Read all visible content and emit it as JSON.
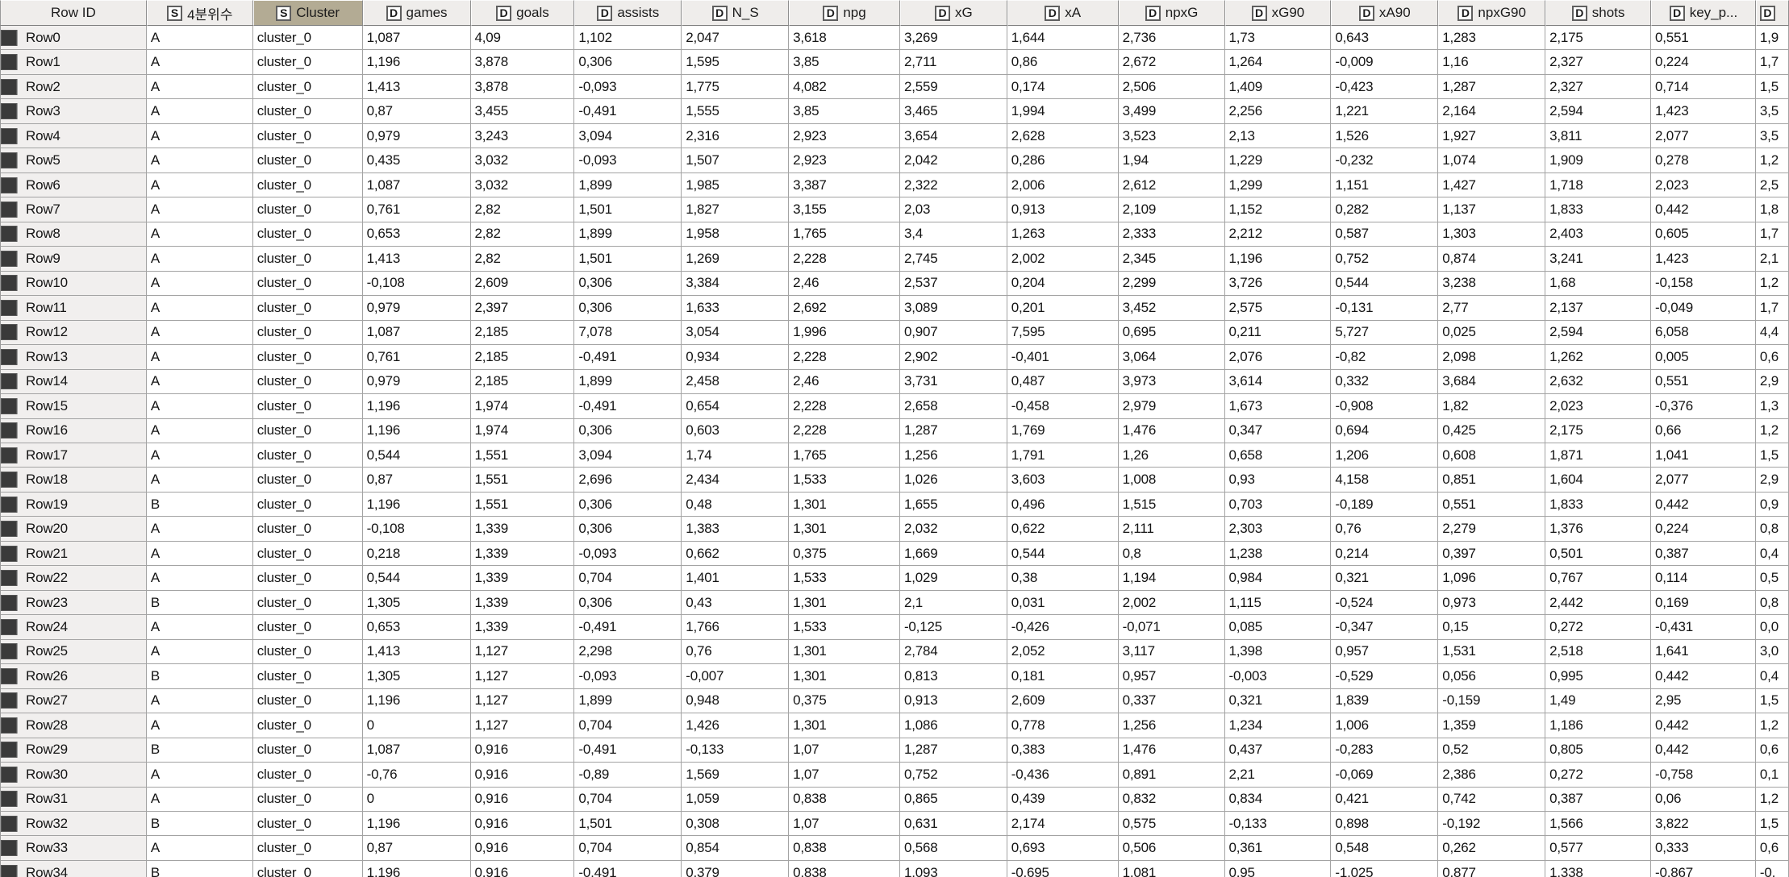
{
  "colors": {
    "highlighted_header_background": "#b3ab94",
    "row_color_chip": "#3a3a3a",
    "header_background": "#efedeb",
    "grid_line": "#a3a3a3"
  },
  "table": {
    "row_id_header": "Row ID",
    "columns": [
      {
        "type": "S",
        "label": "4분위수",
        "highlighted": false
      },
      {
        "type": "S",
        "label": "Cluster",
        "highlighted": true
      },
      {
        "type": "D",
        "label": "games",
        "highlighted": false
      },
      {
        "type": "D",
        "label": "goals",
        "highlighted": false
      },
      {
        "type": "D",
        "label": "assists",
        "highlighted": false
      },
      {
        "type": "D",
        "label": "N_S",
        "highlighted": false
      },
      {
        "type": "D",
        "label": "npg",
        "highlighted": false
      },
      {
        "type": "D",
        "label": "xG",
        "highlighted": false
      },
      {
        "type": "D",
        "label": "xA",
        "highlighted": false
      },
      {
        "type": "D",
        "label": "npxG",
        "highlighted": false
      },
      {
        "type": "D",
        "label": "xG90",
        "highlighted": false
      },
      {
        "type": "D",
        "label": "xA90",
        "highlighted": false
      },
      {
        "type": "D",
        "label": "npxG90",
        "highlighted": false
      },
      {
        "type": "D",
        "label": "shots",
        "highlighted": false
      },
      {
        "type": "D",
        "label": "key_p...",
        "highlighted": false
      },
      {
        "type": "D",
        "label": "",
        "highlighted": false
      }
    ],
    "rows": [
      {
        "id": "Row0",
        "cells": [
          "A",
          "cluster_0",
          "1,087",
          "4,09",
          "1,102",
          "2,047",
          "3,618",
          "3,269",
          "1,644",
          "2,736",
          "1,73",
          "0,643",
          "1,283",
          "2,175",
          "0,551",
          "1,9"
        ]
      },
      {
        "id": "Row1",
        "cells": [
          "A",
          "cluster_0",
          "1,196",
          "3,878",
          "0,306",
          "1,595",
          "3,85",
          "2,711",
          "0,86",
          "2,672",
          "1,264",
          "-0,009",
          "1,16",
          "2,327",
          "0,224",
          "1,7"
        ]
      },
      {
        "id": "Row2",
        "cells": [
          "A",
          "cluster_0",
          "1,413",
          "3,878",
          "-0,093",
          "1,775",
          "4,082",
          "2,559",
          "0,174",
          "2,506",
          "1,409",
          "-0,423",
          "1,287",
          "2,327",
          "0,714",
          "1,5"
        ]
      },
      {
        "id": "Row3",
        "cells": [
          "A",
          "cluster_0",
          "0,87",
          "3,455",
          "-0,491",
          "1,555",
          "3,85",
          "3,465",
          "1,994",
          "3,499",
          "2,256",
          "1,221",
          "2,164",
          "2,594",
          "1,423",
          "3,5"
        ]
      },
      {
        "id": "Row4",
        "cells": [
          "A",
          "cluster_0",
          "0,979",
          "3,243",
          "3,094",
          "2,316",
          "2,923",
          "3,654",
          "2,628",
          "3,523",
          "2,13",
          "1,526",
          "1,927",
          "3,811",
          "2,077",
          "3,5"
        ]
      },
      {
        "id": "Row5",
        "cells": [
          "A",
          "cluster_0",
          "0,435",
          "3,032",
          "-0,093",
          "1,507",
          "2,923",
          "2,042",
          "0,286",
          "1,94",
          "1,229",
          "-0,232",
          "1,074",
          "1,909",
          "0,278",
          "1,2"
        ]
      },
      {
        "id": "Row6",
        "cells": [
          "A",
          "cluster_0",
          "1,087",
          "3,032",
          "1,899",
          "1,985",
          "3,387",
          "2,322",
          "2,006",
          "2,612",
          "1,299",
          "1,151",
          "1,427",
          "1,718",
          "2,023",
          "2,5"
        ]
      },
      {
        "id": "Row7",
        "cells": [
          "A",
          "cluster_0",
          "0,761",
          "2,82",
          "1,501",
          "1,827",
          "3,155",
          "2,03",
          "0,913",
          "2,109",
          "1,152",
          "0,282",
          "1,137",
          "1,833",
          "0,442",
          "1,8"
        ]
      },
      {
        "id": "Row8",
        "cells": [
          "A",
          "cluster_0",
          "0,653",
          "2,82",
          "1,899",
          "1,958",
          "1,765",
          "3,4",
          "1,263",
          "2,333",
          "2,212",
          "0,587",
          "1,303",
          "2,403",
          "0,605",
          "1,7"
        ]
      },
      {
        "id": "Row9",
        "cells": [
          "A",
          "cluster_0",
          "1,413",
          "2,82",
          "1,501",
          "1,269",
          "2,228",
          "2,745",
          "2,002",
          "2,345",
          "1,196",
          "0,752",
          "0,874",
          "3,241",
          "1,423",
          "2,1"
        ]
      },
      {
        "id": "Row10",
        "cells": [
          "A",
          "cluster_0",
          "-0,108",
          "2,609",
          "0,306",
          "3,384",
          "2,46",
          "2,537",
          "0,204",
          "2,299",
          "3,726",
          "0,544",
          "3,238",
          "1,68",
          "-0,158",
          "1,2"
        ]
      },
      {
        "id": "Row11",
        "cells": [
          "A",
          "cluster_0",
          "0,979",
          "2,397",
          "0,306",
          "1,633",
          "2,692",
          "3,089",
          "0,201",
          "3,452",
          "2,575",
          "-0,131",
          "2,77",
          "2,137",
          "-0,049",
          "1,7"
        ]
      },
      {
        "id": "Row12",
        "cells": [
          "A",
          "cluster_0",
          "1,087",
          "2,185",
          "7,078",
          "3,054",
          "1,996",
          "0,907",
          "7,595",
          "0,695",
          "0,211",
          "5,727",
          "0,025",
          "2,594",
          "6,058",
          "4,4"
        ]
      },
      {
        "id": "Row13",
        "cells": [
          "A",
          "cluster_0",
          "0,761",
          "2,185",
          "-0,491",
          "0,934",
          "2,228",
          "2,902",
          "-0,401",
          "3,064",
          "2,076",
          "-0,82",
          "2,098",
          "1,262",
          "0,005",
          "0,6"
        ]
      },
      {
        "id": "Row14",
        "cells": [
          "A",
          "cluster_0",
          "0,979",
          "2,185",
          "1,899",
          "2,458",
          "2,46",
          "3,731",
          "0,487",
          "3,973",
          "3,614",
          "0,332",
          "3,684",
          "2,632",
          "0,551",
          "2,9"
        ]
      },
      {
        "id": "Row15",
        "cells": [
          "A",
          "cluster_0",
          "1,196",
          "1,974",
          "-0,491",
          "0,654",
          "2,228",
          "2,658",
          "-0,458",
          "2,979",
          "1,673",
          "-0,908",
          "1,82",
          "2,023",
          "-0,376",
          "1,3"
        ]
      },
      {
        "id": "Row16",
        "cells": [
          "A",
          "cluster_0",
          "1,196",
          "1,974",
          "0,306",
          "0,603",
          "2,228",
          "1,287",
          "1,769",
          "1,476",
          "0,347",
          "0,694",
          "0,425",
          "2,175",
          "0,66",
          "1,2"
        ]
      },
      {
        "id": "Row17",
        "cells": [
          "A",
          "cluster_0",
          "0,544",
          "1,551",
          "3,094",
          "1,74",
          "1,765",
          "1,256",
          "1,791",
          "1,26",
          "0,658",
          "1,206",
          "0,608",
          "1,871",
          "1,041",
          "1,5"
        ]
      },
      {
        "id": "Row18",
        "cells": [
          "A",
          "cluster_0",
          "0,87",
          "1,551",
          "2,696",
          "2,434",
          "1,533",
          "1,026",
          "3,603",
          "1,008",
          "0,93",
          "4,158",
          "0,851",
          "1,604",
          "2,077",
          "2,9"
        ]
      },
      {
        "id": "Row19",
        "cells": [
          "B",
          "cluster_0",
          "1,196",
          "1,551",
          "0,306",
          "0,48",
          "1,301",
          "1,655",
          "0,496",
          "1,515",
          "0,703",
          "-0,189",
          "0,551",
          "1,833",
          "0,442",
          "0,9"
        ]
      },
      {
        "id": "Row20",
        "cells": [
          "A",
          "cluster_0",
          "-0,108",
          "1,339",
          "0,306",
          "1,383",
          "1,301",
          "2,032",
          "0,622",
          "2,111",
          "2,303",
          "0,76",
          "2,279",
          "1,376",
          "0,224",
          "0,8"
        ]
      },
      {
        "id": "Row21",
        "cells": [
          "A",
          "cluster_0",
          "0,218",
          "1,339",
          "-0,093",
          "0,662",
          "0,375",
          "1,669",
          "0,544",
          "0,8",
          "1,238",
          "0,214",
          "0,397",
          "0,501",
          "0,387",
          "0,4"
        ]
      },
      {
        "id": "Row22",
        "cells": [
          "A",
          "cluster_0",
          "0,544",
          "1,339",
          "0,704",
          "1,401",
          "1,533",
          "1,029",
          "0,38",
          "1,194",
          "0,984",
          "0,321",
          "1,096",
          "0,767",
          "0,114",
          "0,5"
        ]
      },
      {
        "id": "Row23",
        "cells": [
          "B",
          "cluster_0",
          "1,305",
          "1,339",
          "0,306",
          "0,43",
          "1,301",
          "2,1",
          "0,031",
          "2,002",
          "1,115",
          "-0,524",
          "0,973",
          "2,442",
          "0,169",
          "0,8"
        ]
      },
      {
        "id": "Row24",
        "cells": [
          "A",
          "cluster_0",
          "0,653",
          "1,339",
          "-0,491",
          "1,766",
          "1,533",
          "-0,125",
          "-0,426",
          "-0,071",
          "0,085",
          "-0,347",
          "0,15",
          "0,272",
          "-0,431",
          "0,0"
        ]
      },
      {
        "id": "Row25",
        "cells": [
          "A",
          "cluster_0",
          "1,413",
          "1,127",
          "2,298",
          "0,76",
          "1,301",
          "2,784",
          "2,052",
          "3,117",
          "1,398",
          "0,957",
          "1,531",
          "2,518",
          "1,641",
          "3,0"
        ]
      },
      {
        "id": "Row26",
        "cells": [
          "B",
          "cluster_0",
          "1,305",
          "1,127",
          "-0,093",
          "-0,007",
          "1,301",
          "0,813",
          "0,181",
          "0,957",
          "-0,003",
          "-0,529",
          "0,056",
          "0,995",
          "0,442",
          "0,4"
        ]
      },
      {
        "id": "Row27",
        "cells": [
          "A",
          "cluster_0",
          "1,196",
          "1,127",
          "1,899",
          "0,948",
          "0,375",
          "0,913",
          "2,609",
          "0,337",
          "0,321",
          "1,839",
          "-0,159",
          "1,49",
          "2,95",
          "1,5"
        ]
      },
      {
        "id": "Row28",
        "cells": [
          "A",
          "cluster_0",
          "0",
          "1,127",
          "0,704",
          "1,426",
          "1,301",
          "1,086",
          "0,778",
          "1,256",
          "1,234",
          "1,006",
          "1,359",
          "1,186",
          "0,442",
          "1,2"
        ]
      },
      {
        "id": "Row29",
        "cells": [
          "B",
          "cluster_0",
          "1,087",
          "0,916",
          "-0,491",
          "-0,133",
          "1,07",
          "1,287",
          "0,383",
          "1,476",
          "0,437",
          "-0,283",
          "0,52",
          "0,805",
          "0,442",
          "0,6"
        ]
      },
      {
        "id": "Row30",
        "cells": [
          "A",
          "cluster_0",
          "-0,76",
          "0,916",
          "-0,89",
          "1,569",
          "1,07",
          "0,752",
          "-0,436",
          "0,891",
          "2,21",
          "-0,069",
          "2,386",
          "0,272",
          "-0,758",
          "0,1"
        ]
      },
      {
        "id": "Row31",
        "cells": [
          "A",
          "cluster_0",
          "0",
          "0,916",
          "0,704",
          "1,059",
          "0,838",
          "0,865",
          "0,439",
          "0,832",
          "0,834",
          "0,421",
          "0,742",
          "0,387",
          "0,06",
          "1,2"
        ]
      },
      {
        "id": "Row32",
        "cells": [
          "B",
          "cluster_0",
          "1,196",
          "0,916",
          "1,501",
          "0,308",
          "1,07",
          "0,631",
          "2,174",
          "0,575",
          "-0,133",
          "0,898",
          "-0,192",
          "1,566",
          "3,822",
          "1,5"
        ]
      },
      {
        "id": "Row33",
        "cells": [
          "A",
          "cluster_0",
          "0,87",
          "0,916",
          "0,704",
          "0,854",
          "0,838",
          "0,568",
          "0,693",
          "0,506",
          "0,361",
          "0,548",
          "0,262",
          "0,577",
          "0,333",
          "0,6"
        ]
      },
      {
        "id": "Row34",
        "cells": [
          "B",
          "cluster_0",
          "1,196",
          "0,916",
          "-0,491",
          "0,379",
          "0,838",
          "1,093",
          "-0,695",
          "1,081",
          "0,95",
          "-1,025",
          "0,877",
          "1,338",
          "-0,867",
          "-0,"
        ]
      }
    ]
  }
}
